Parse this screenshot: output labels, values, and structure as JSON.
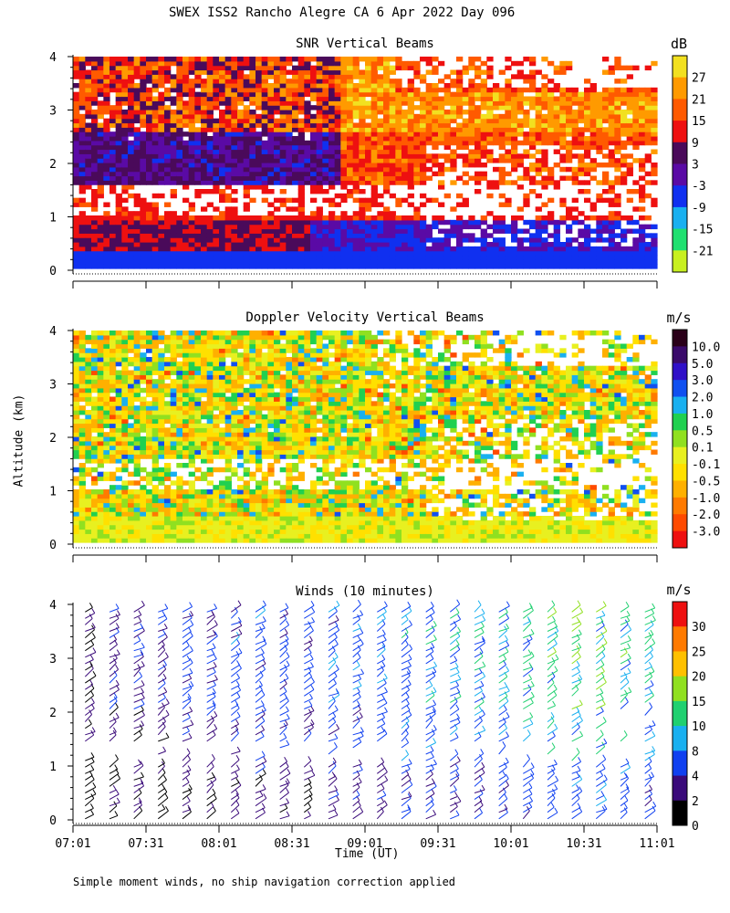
{
  "figure_title": "SWEX ISS2 Rancho Alegre CA   6 Apr 2022 Day 096",
  "y_axis_label": "Altitude (km)",
  "x_axis_label": "Time (UT)",
  "footnote": "Simple moment winds, no ship navigation correction applied",
  "x_ticks": [
    "07:01",
    "07:31",
    "08:01",
    "08:31",
    "09:01",
    "09:31",
    "10:01",
    "10:31",
    "11:01"
  ],
  "y_ticks": [
    "0",
    "1",
    "2",
    "3",
    "4"
  ],
  "chart_data": [
    {
      "type": "heatmap",
      "title": "SNR Vertical Beams",
      "unit": "dB",
      "xlabel": "",
      "ylabel": "Altitude (km)",
      "x_range": [
        "07:01",
        "11:01"
      ],
      "ylim": [
        0,
        4
      ],
      "colorbar": {
        "labels": [
          "27",
          "21",
          "15",
          "9",
          "3",
          "-3",
          "-9",
          "-15",
          "-21"
        ],
        "colors": [
          "#f2e020",
          "#ff9a00",
          "#ff5a00",
          "#ee1010",
          "#4a0a5a",
          "#5a0aa5",
          "#1030f0",
          "#19b0f0",
          "#20e070",
          "#c8f020"
        ]
      },
      "field_description": "low values near ground (blue/cyan), gaps (white) around 1-1.5 km, high values (orange/red) above 2.5 km"
    },
    {
      "type": "heatmap",
      "title": "Doppler Velocity Vertical Beams",
      "unit": "m/s",
      "xlabel": "",
      "ylabel": "Altitude (km)",
      "x_range": [
        "07:01",
        "11:01"
      ],
      "ylim": [
        0,
        4
      ],
      "colorbar": {
        "labels": [
          "10.0",
          "5.0",
          "3.0",
          "2.0",
          "1.0",
          "0.5",
          "0.1",
          "-0.1",
          "-0.5",
          "-1.0",
          "-2.0",
          "-3.0"
        ],
        "colors": [
          "#2a0018",
          "#3a0a6a",
          "#3010c8",
          "#1050f0",
          "#19b0f0",
          "#20d050",
          "#90e020",
          "#e8f020",
          "#ffe000",
          "#ffb000",
          "#ff7a00",
          "#ff4a00",
          "#ee1010"
        ]
      }
    },
    {
      "type": "scatter",
      "title": "Winds (10 minutes)",
      "unit": "m/s",
      "xlabel": "Time (UT)",
      "ylabel": "Altitude (km)",
      "x_range": [
        "07:01",
        "11:01"
      ],
      "ylim": [
        0,
        4
      ],
      "colorbar": {
        "labels": [
          "30",
          "25",
          "20",
          "15",
          "10",
          "8",
          "4",
          "2",
          "0"
        ],
        "colors": [
          "#ee1010",
          "#ff7a00",
          "#ffc000",
          "#90e020",
          "#20d070",
          "#19b0f0",
          "#1040f0",
          "#3a0a7a",
          "#000000"
        ]
      },
      "profile_times": [
        "07:06",
        "07:16",
        "07:26",
        "07:36",
        "07:46",
        "07:56",
        "08:06",
        "08:16",
        "08:26",
        "08:36",
        "08:46",
        "08:56",
        "09:06",
        "09:16",
        "09:26",
        "09:36",
        "09:46",
        "09:56",
        "10:06",
        "10:16",
        "10:26",
        "10:36",
        "10:46",
        "10:56"
      ],
      "typical_speed_ms": [
        2,
        3,
        3,
        3,
        4,
        4,
        5,
        5,
        5,
        5,
        6,
        6,
        6,
        7,
        7,
        8,
        8,
        8,
        9,
        10,
        11,
        12,
        10,
        9
      ]
    }
  ]
}
